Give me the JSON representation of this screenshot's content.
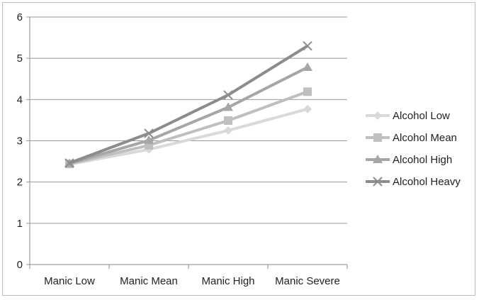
{
  "chart_data": {
    "type": "line",
    "categories": [
      "Manic Low",
      "Manic Mean",
      "Manic High",
      "Manic Severe"
    ],
    "ylim": [
      0,
      6
    ],
    "yticks": [
      0,
      1,
      2,
      3,
      4,
      5,
      6
    ],
    "grid": true,
    "legend_position": "right",
    "series": [
      {
        "name": "Alcohol Low",
        "marker": "diamond",
        "color": "#d9d9d9",
        "values": [
          2.43,
          2.79,
          3.25,
          3.77
        ]
      },
      {
        "name": "Alcohol Mean",
        "marker": "square",
        "color": "#bfbfbf",
        "values": [
          2.44,
          2.89,
          3.49,
          4.19
        ]
      },
      {
        "name": "Alcohol High",
        "marker": "triangle",
        "color": "#a6a6a6",
        "values": [
          2.45,
          3.01,
          3.81,
          4.78
        ]
      },
      {
        "name": "Alcohol Heavy",
        "marker": "x",
        "color": "#8c8c8c",
        "values": [
          2.46,
          3.18,
          4.11,
          5.3
        ]
      }
    ]
  }
}
